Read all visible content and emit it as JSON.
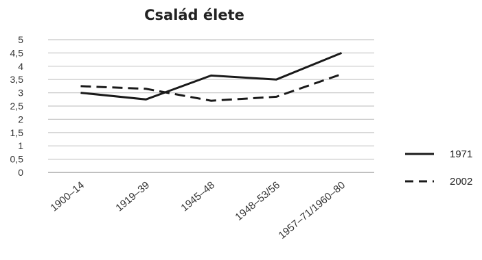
{
  "chart_data": {
    "type": "line",
    "title": "Család élete",
    "categories": [
      "1900–14",
      "1919–39",
      "1945–48",
      "1948–53/56",
      "1957–71/1960–80"
    ],
    "series": [
      {
        "name": "1971",
        "values": [
          3.0,
          2.75,
          3.65,
          3.5,
          4.5
        ],
        "style": "solid",
        "color": "#1a1a1a"
      },
      {
        "name": "2002",
        "values": [
          3.25,
          3.15,
          2.7,
          2.85,
          3.7
        ],
        "style": "dashed",
        "color": "#1a1a1a"
      }
    ],
    "yticks": [
      "0",
      "0,5",
      "1",
      "1,5",
      "2",
      "2,5",
      "3",
      "3,5",
      "4",
      "4,5",
      "5"
    ],
    "ylim": [
      0,
      5
    ],
    "grid": true,
    "legend_position": "right"
  }
}
